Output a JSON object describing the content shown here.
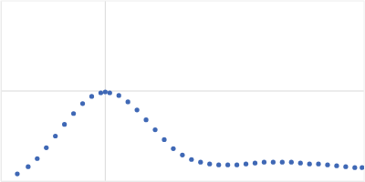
{
  "chart_data": {
    "type": "scatter",
    "x": [
      0.157,
      0.261,
      0.348,
      0.435,
      0.522,
      0.609,
      0.696,
      0.783,
      0.87,
      0.957,
      1.0,
      1.043,
      1.13,
      1.217,
      1.304,
      1.391,
      1.478,
      1.565,
      1.652,
      1.739,
      1.826,
      1.913,
      2.0,
      2.087,
      2.174,
      2.261,
      2.348,
      2.435,
      2.522,
      2.609,
      2.696,
      2.783,
      2.87,
      2.957,
      3.043,
      3.13,
      3.217,
      3.304,
      3.391,
      3.461
    ],
    "values": [
      0.08,
      0.16,
      0.25,
      0.37,
      0.5,
      0.63,
      0.75,
      0.86,
      0.94,
      0.98,
      0.99,
      0.98,
      0.95,
      0.88,
      0.79,
      0.68,
      0.57,
      0.46,
      0.36,
      0.29,
      0.24,
      0.21,
      0.19,
      0.18,
      0.18,
      0.18,
      0.19,
      0.2,
      0.21,
      0.21,
      0.21,
      0.21,
      0.2,
      0.19,
      0.19,
      0.18,
      0.17,
      0.16,
      0.15,
      0.15
    ],
    "color": "#3f68b5",
    "marker": "circle",
    "xlim": [
      0,
      3.48
    ],
    "xticks": [
      1
    ],
    "ylim": [
      0,
      2
    ],
    "yticks": [
      1
    ],
    "grid": true,
    "tick_labels": false
  }
}
